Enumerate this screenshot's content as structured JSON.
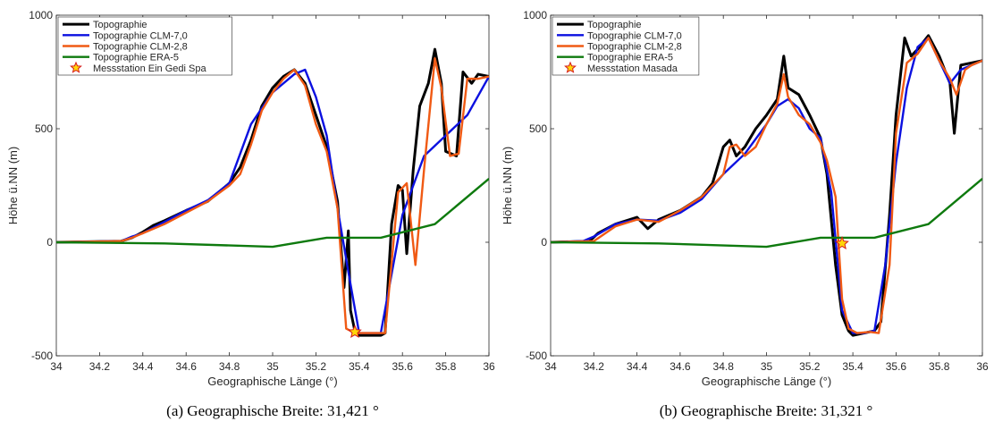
{
  "chart_data": [
    {
      "type": "line",
      "caption": "(a) Geographische Breite: 31,421 °",
      "xlabel": "Geographische Länge (°)",
      "ylabel": "Höhe ü.NN (m)",
      "xlim": [
        34,
        36
      ],
      "ylim": [
        -500,
        1000
      ],
      "xticks": [
        "34",
        "34.2",
        "34.4",
        "34.6",
        "34.8",
        "35",
        "35.2",
        "35.4",
        "35.6",
        "35.8",
        "36"
      ],
      "yticks": [
        "-500",
        "0",
        "500",
        "1000"
      ],
      "legend_position": "top-left",
      "series": [
        {
          "name": "Topographie",
          "color": "#000000",
          "x": [
            34.0,
            34.3,
            34.35,
            34.4,
            34.45,
            34.5,
            34.6,
            34.7,
            34.8,
            34.85,
            34.9,
            34.95,
            35.0,
            35.05,
            35.1,
            35.15,
            35.2,
            35.25,
            35.3,
            35.33,
            35.35,
            35.36,
            35.38,
            35.4,
            35.45,
            35.5,
            35.52,
            35.55,
            35.58,
            35.6,
            35.62,
            35.65,
            35.68,
            35.72,
            35.75,
            35.78,
            35.8,
            35.85,
            35.88,
            35.92,
            35.95,
            36.0
          ],
          "y": [
            0,
            5,
            20,
            45,
            75,
            95,
            140,
            180,
            260,
            330,
            450,
            600,
            680,
            730,
            760,
            700,
            560,
            420,
            180,
            -200,
            50,
            -300,
            -390,
            -410,
            -410,
            -410,
            -400,
            80,
            250,
            230,
            -50,
            320,
            600,
            700,
            850,
            700,
            400,
            380,
            750,
            700,
            740,
            730
          ]
        },
        {
          "name": "Topographie CLM-7,0",
          "color": "#0b10e0",
          "x": [
            34.0,
            34.3,
            34.35,
            34.4,
            34.5,
            34.6,
            34.7,
            34.8,
            34.9,
            35.0,
            35.1,
            35.15,
            35.2,
            35.25,
            35.3,
            35.35,
            35.4,
            35.45,
            35.5,
            35.6,
            35.7,
            35.8,
            35.9,
            36.0
          ],
          "y": [
            0,
            5,
            25,
            40,
            90,
            140,
            185,
            260,
            520,
            660,
            740,
            760,
            640,
            470,
            150,
            -130,
            -400,
            -400,
            -400,
            120,
            380,
            470,
            560,
            730
          ]
        },
        {
          "name": "Topographie CLM-2,8",
          "color": "#f05a14",
          "x": [
            34.0,
            34.3,
            34.35,
            34.4,
            34.5,
            34.6,
            34.7,
            34.8,
            34.85,
            34.9,
            34.95,
            35.0,
            35.05,
            35.1,
            35.15,
            35.2,
            35.25,
            35.3,
            35.34,
            35.38,
            35.42,
            35.48,
            35.52,
            35.58,
            35.62,
            35.66,
            35.7,
            35.75,
            35.78,
            35.82,
            35.86,
            35.9,
            35.95,
            36.0
          ],
          "y": [
            0,
            5,
            20,
            40,
            80,
            130,
            180,
            250,
            300,
            430,
            580,
            660,
            720,
            760,
            690,
            520,
            400,
            150,
            -380,
            -400,
            -400,
            -400,
            -400,
            220,
            260,
            -100,
            320,
            810,
            680,
            380,
            390,
            720,
            720,
            730
          ]
        },
        {
          "name": "Topographie ERA-5",
          "color": "#0e7a0e",
          "x": [
            34.0,
            34.5,
            35.0,
            35.25,
            35.5,
            35.75,
            36.0
          ],
          "y": [
            0,
            -5,
            -20,
            20,
            20,
            80,
            280
          ]
        }
      ],
      "station": {
        "name": "Messstation Ein Gedi Spa",
        "x": 35.38,
        "y": -395,
        "color": "#ffd60a",
        "edge": "#d61a1a"
      }
    },
    {
      "type": "line",
      "caption": "(b) Geographische Breite: 31,321 °",
      "xlabel": "Geographische Länge (°)",
      "ylabel": "Höhe ü.NN (m)",
      "xlim": [
        34,
        36
      ],
      "ylim": [
        -500,
        1000
      ],
      "xticks": [
        "34",
        "34.2",
        "34.4",
        "34.6",
        "34.8",
        "35",
        "35.2",
        "35.4",
        "35.6",
        "35.8",
        "36"
      ],
      "yticks": [
        "-500",
        "0",
        "500",
        "1000"
      ],
      "legend_position": "top-left",
      "series": [
        {
          "name": "Topographie",
          "color": "#000000",
          "x": [
            34.0,
            34.18,
            34.22,
            34.3,
            34.4,
            34.45,
            34.5,
            34.6,
            34.7,
            34.75,
            34.8,
            34.83,
            34.86,
            34.9,
            34.95,
            35.0,
            35.05,
            35.08,
            35.1,
            35.15,
            35.2,
            35.25,
            35.28,
            35.32,
            35.35,
            35.38,
            35.4,
            35.45,
            35.5,
            35.53,
            35.57,
            35.6,
            35.64,
            35.67,
            35.7,
            35.75,
            35.8,
            35.85,
            35.87,
            35.9,
            35.95,
            36.0
          ],
          "y": [
            0,
            5,
            40,
            80,
            110,
            60,
            100,
            140,
            200,
            260,
            420,
            450,
            380,
            420,
            500,
            560,
            630,
            820,
            680,
            650,
            560,
            460,
            300,
            -100,
            -320,
            -390,
            -410,
            -400,
            -390,
            -350,
            120,
            560,
            900,
            820,
            850,
            910,
            820,
            700,
            480,
            780,
            790,
            800
          ]
        },
        {
          "name": "Topographie CLM-7,0",
          "color": "#0b10e0",
          "x": [
            34.0,
            34.15,
            34.2,
            34.3,
            34.4,
            34.5,
            34.6,
            34.7,
            34.8,
            34.9,
            35.0,
            35.05,
            35.1,
            35.15,
            35.2,
            35.25,
            35.3,
            35.35,
            35.4,
            35.45,
            35.5,
            35.55,
            35.6,
            35.65,
            35.7,
            35.75,
            35.8,
            35.85,
            35.9,
            35.95,
            36.0
          ],
          "y": [
            0,
            5,
            25,
            80,
            100,
            95,
            130,
            190,
            300,
            390,
            520,
            600,
            630,
            590,
            500,
            460,
            220,
            -300,
            -400,
            -400,
            -390,
            -100,
            350,
            680,
            860,
            900,
            800,
            700,
            760,
            780,
            800
          ]
        },
        {
          "name": "Topographie CLM-2,8",
          "color": "#f05a14",
          "x": [
            34.0,
            34.2,
            34.3,
            34.4,
            34.5,
            34.6,
            34.7,
            34.8,
            34.83,
            34.86,
            34.9,
            34.95,
            35.0,
            35.05,
            35.08,
            35.1,
            35.15,
            35.2,
            35.25,
            35.28,
            35.32,
            35.35,
            35.38,
            35.42,
            35.48,
            35.52,
            35.57,
            35.6,
            35.65,
            35.7,
            35.75,
            35.8,
            35.85,
            35.88,
            35.92,
            35.95,
            36.0
          ],
          "y": [
            0,
            5,
            70,
            100,
            90,
            140,
            200,
            300,
            420,
            430,
            380,
            420,
            520,
            610,
            740,
            640,
            560,
            520,
            440,
            360,
            200,
            -250,
            -380,
            -400,
            -395,
            -400,
            -100,
            480,
            790,
            830,
            900,
            800,
            720,
            650,
            760,
            780,
            800
          ]
        },
        {
          "name": "Topographie ERA-5",
          "color": "#0e7a0e",
          "x": [
            34.0,
            34.5,
            35.0,
            35.25,
            35.5,
            35.75,
            36.0
          ],
          "y": [
            0,
            -5,
            -20,
            20,
            20,
            80,
            280
          ]
        }
      ],
      "station": {
        "name": "Messstation Masada",
        "x": 35.35,
        "y": -5,
        "color": "#ffd60a",
        "edge": "#d61a1a"
      }
    }
  ]
}
